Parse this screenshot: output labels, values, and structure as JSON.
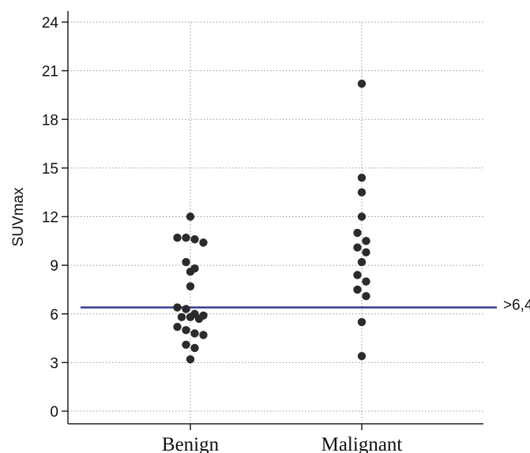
{
  "chart_data": {
    "type": "scatter",
    "ylabel": "SUVmax",
    "ylim": [
      -0.5,
      24.5
    ],
    "yticks": [
      0,
      3,
      6,
      9,
      12,
      15,
      18,
      21,
      24
    ],
    "categories": [
      "Benign",
      "Malignant"
    ],
    "grid": true,
    "cutoff": {
      "value": 6.4,
      "label": ">6,4",
      "color": "#2f2f8f"
    },
    "point_color": "#2b2b2b",
    "series": [
      {
        "values": [
          12.0,
          10.7,
          10.7,
          10.6,
          10.4,
          9.2,
          8.8,
          8.6,
          7.7,
          6.4,
          6.3,
          6.0,
          5.9,
          5.8,
          5.8,
          5.7,
          5.2,
          5.0,
          4.8,
          4.7,
          4.1,
          3.9,
          3.2
        ]
      },
      {
        "values": [
          20.2,
          14.4,
          13.5,
          12.0,
          11.0,
          10.5,
          10.1,
          9.8,
          9.2,
          8.4,
          8.0,
          7.5,
          7.1,
          5.5,
          3.4
        ]
      }
    ]
  }
}
